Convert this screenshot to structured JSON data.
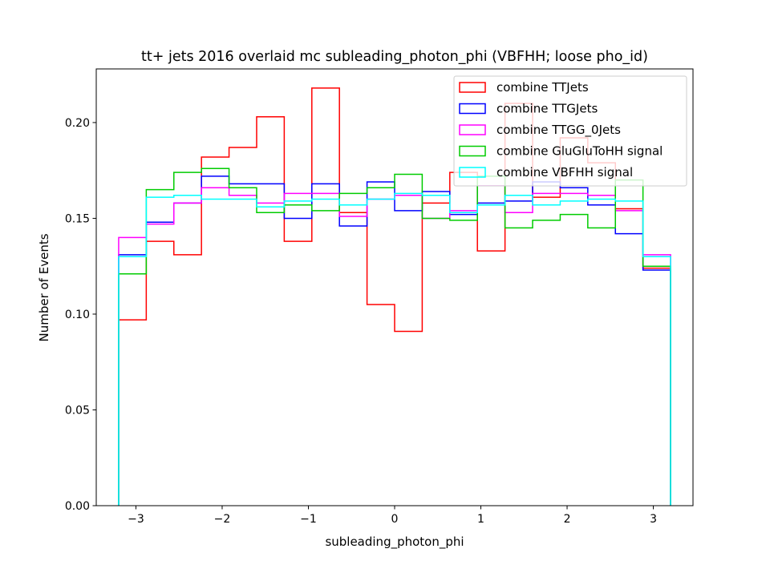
{
  "chart_data": {
    "type": "histogram-step",
    "title": "tt+ jets 2016 overlaid mc subleading_photon_phi (VBFHH; loose pho_id)",
    "xlabel": "subleading_photon_phi",
    "ylabel": "Number of Events",
    "xlim": [
      -3.46,
      3.46
    ],
    "ylim": [
      0.0,
      0.228
    ],
    "xticks": [
      -3,
      -2,
      -1,
      0,
      1,
      2,
      3
    ],
    "xtick_labels": [
      "−3",
      "−2",
      "−1",
      "0",
      "1",
      "2",
      "3"
    ],
    "yticks": [
      0.0,
      0.05,
      0.1,
      0.15,
      0.2
    ],
    "ytick_labels": [
      "0.00",
      "0.05",
      "0.10",
      "0.15",
      "0.20"
    ],
    "grid": false,
    "legend_position": "upper right",
    "bin_edges": [
      -3.2,
      -2.88,
      -2.56,
      -2.24,
      -1.92,
      -1.6,
      -1.28,
      -0.96,
      -0.64,
      -0.32,
      0.0,
      0.32,
      0.64,
      0.96,
      1.28,
      1.6,
      1.92,
      2.24,
      2.56,
      2.88,
      3.2
    ],
    "series": [
      {
        "name": "combine TTJets",
        "color": "#ff0000",
        "values": [
          0.097,
          0.138,
          0.131,
          0.182,
          0.187,
          0.203,
          0.138,
          0.218,
          0.153,
          0.105,
          0.091,
          0.158,
          0.174,
          0.133,
          0.21,
          0.161,
          0.192,
          0.179,
          0.155,
          0.124
        ]
      },
      {
        "name": "combine TTGJets",
        "color": "#0000ff",
        "values": [
          0.131,
          0.148,
          0.158,
          0.172,
          0.168,
          0.168,
          0.15,
          0.168,
          0.146,
          0.169,
          0.154,
          0.164,
          0.152,
          0.158,
          0.159,
          0.169,
          0.166,
          0.157,
          0.142,
          0.123
        ]
      },
      {
        "name": "combine TTGG_0Jets",
        "color": "#ff00ff",
        "values": [
          0.14,
          0.147,
          0.158,
          0.166,
          0.162,
          0.158,
          0.163,
          0.163,
          0.151,
          0.16,
          0.162,
          0.15,
          0.154,
          0.167,
          0.153,
          0.163,
          0.163,
          0.162,
          0.154,
          0.131
        ]
      },
      {
        "name": "combine GluGluToHH signal",
        "color": "#00cc00",
        "values": [
          0.121,
          0.165,
          0.174,
          0.176,
          0.166,
          0.153,
          0.157,
          0.154,
          0.163,
          0.166,
          0.173,
          0.15,
          0.149,
          0.172,
          0.145,
          0.149,
          0.152,
          0.145,
          0.17,
          0.125
        ]
      },
      {
        "name": "combine VBFHH signal",
        "color": "#00ffff",
        "values": [
          0.13,
          0.161,
          0.162,
          0.16,
          0.16,
          0.156,
          0.159,
          0.16,
          0.157,
          0.16,
          0.163,
          0.162,
          0.153,
          0.157,
          0.162,
          0.157,
          0.159,
          0.16,
          0.159,
          0.13
        ]
      }
    ]
  }
}
